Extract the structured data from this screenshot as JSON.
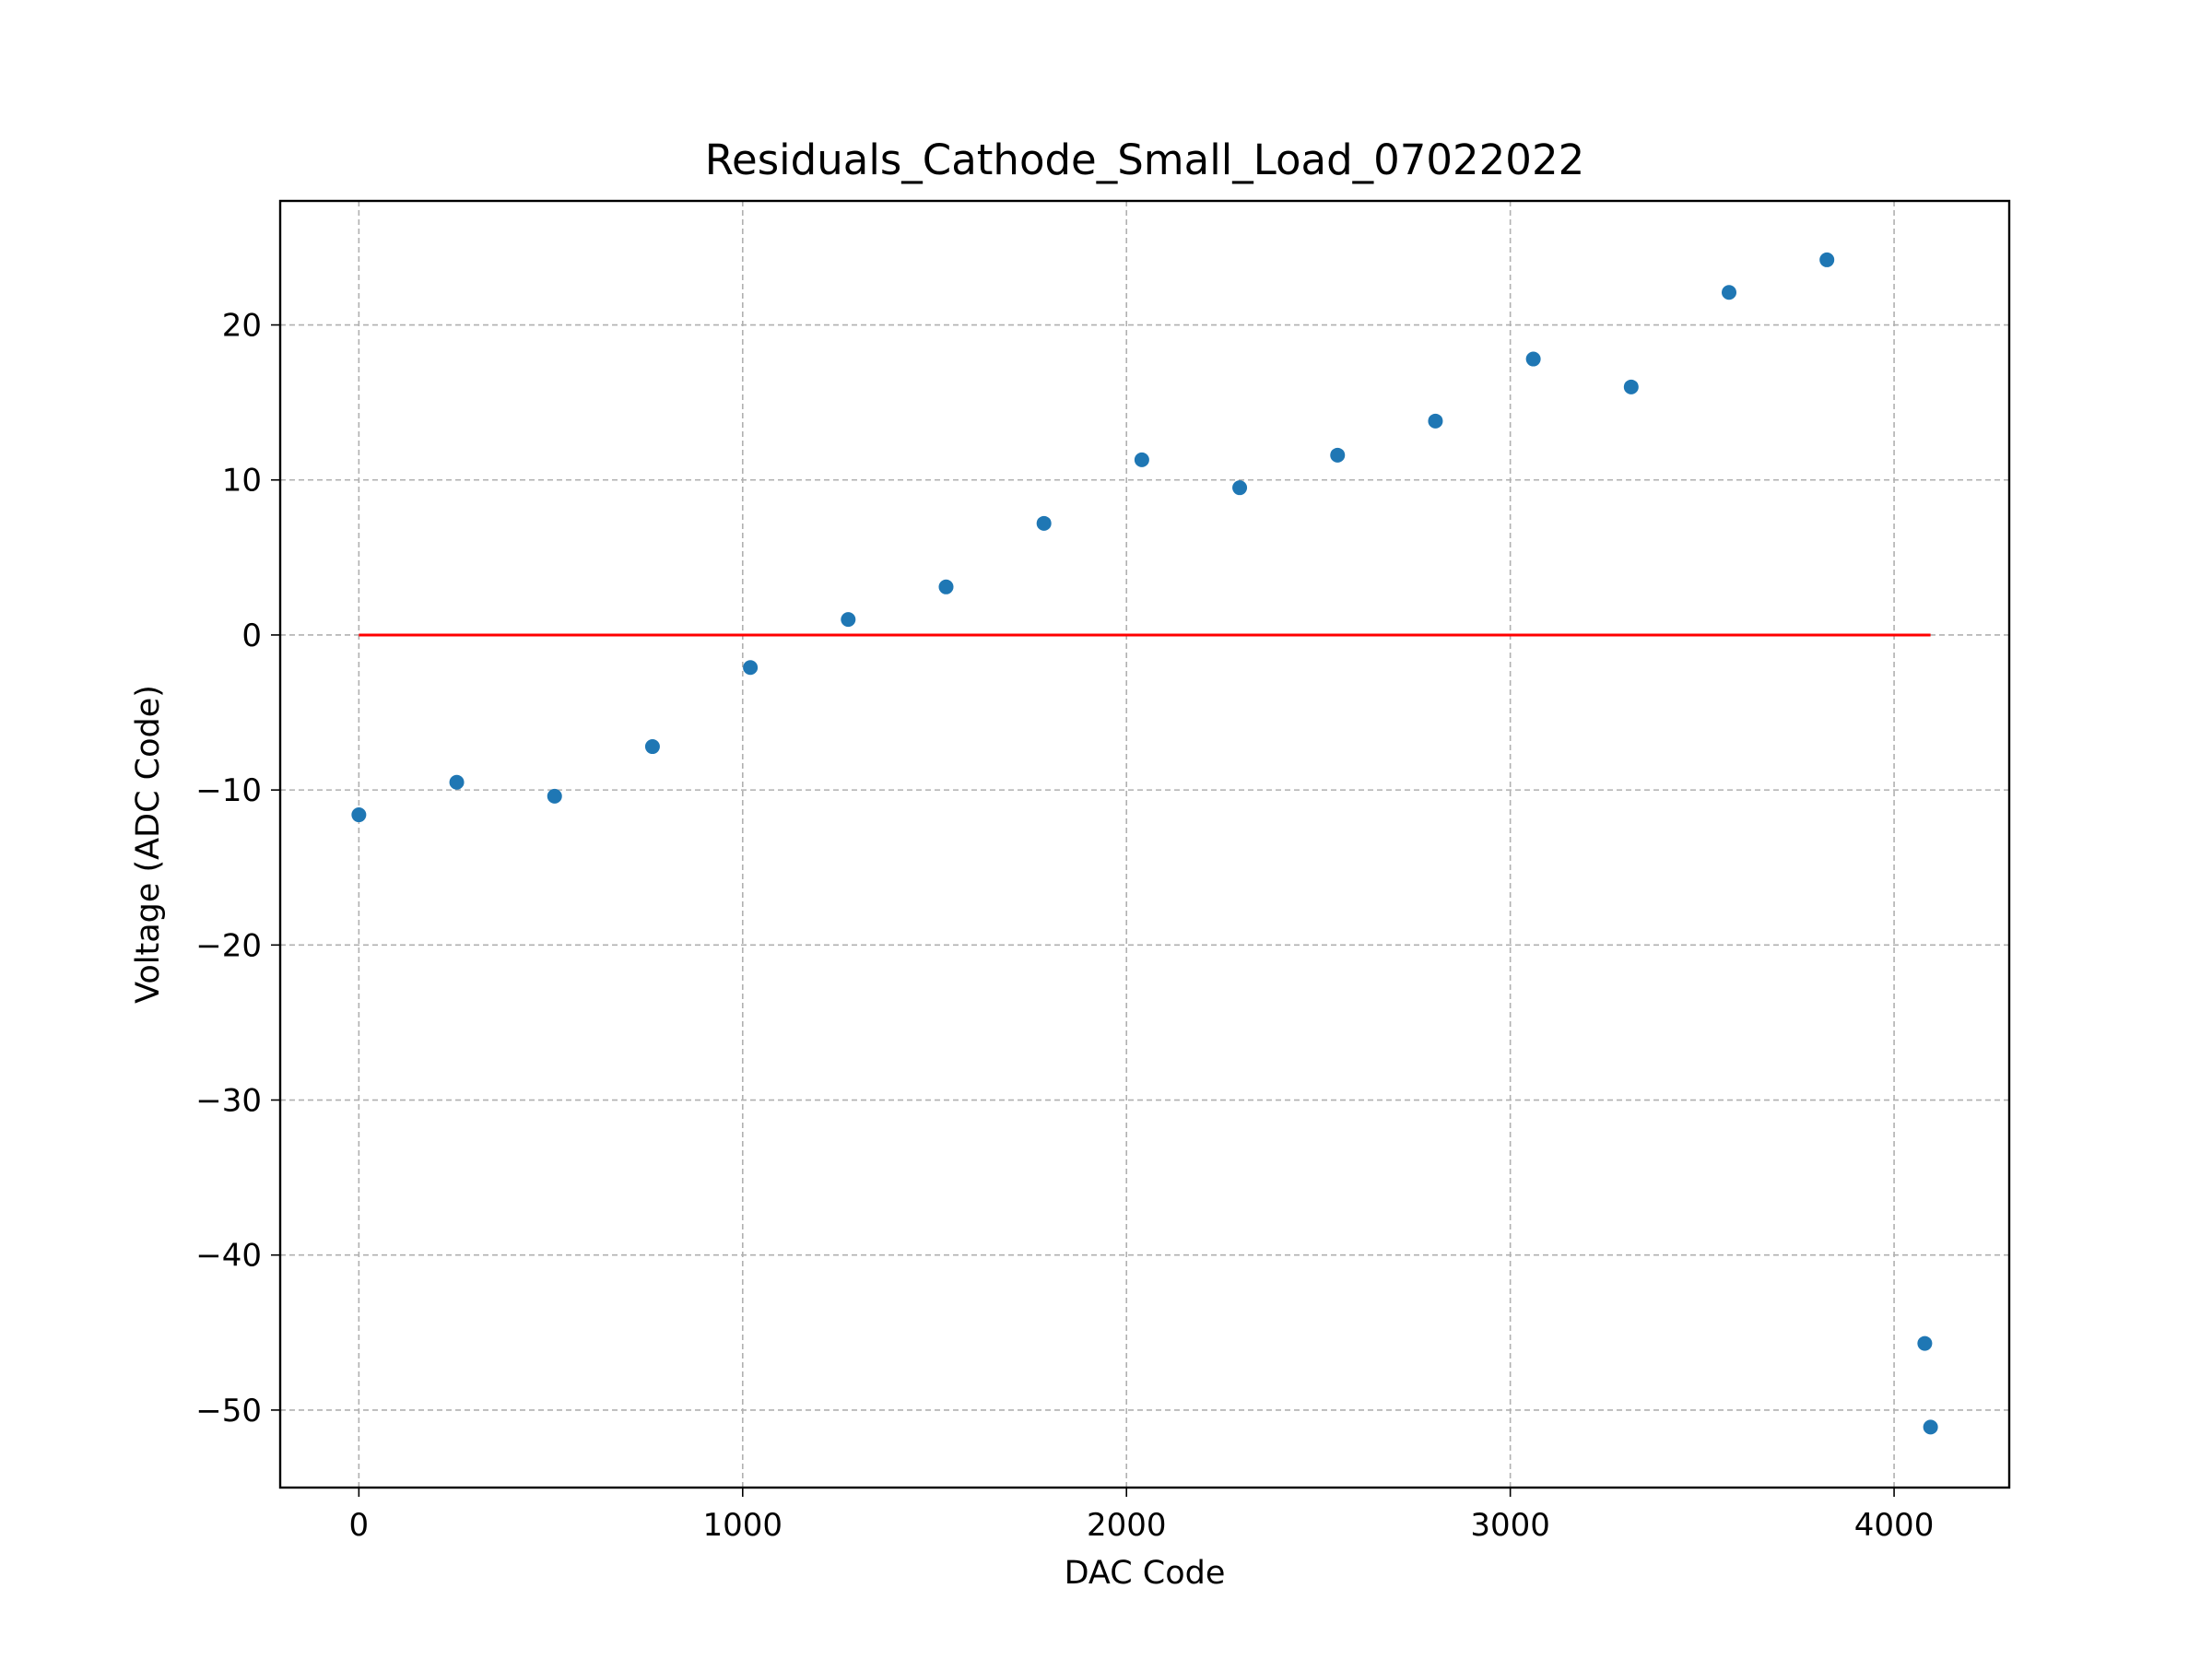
{
  "chart_data": {
    "type": "scatter",
    "title": "Residuals_Cathode_Small_Load_07022022",
    "xlabel": "DAC Code",
    "ylabel": "Voltage (ADC Code)",
    "xlim": [
      -205,
      4300
    ],
    "ylim": [
      -55,
      28
    ],
    "x_ticks": [
      0,
      1000,
      2000,
      3000,
      4000
    ],
    "x_tick_labels": [
      "0",
      "1000",
      "2000",
      "3000",
      "4000"
    ],
    "y_ticks": [
      20,
      10,
      0,
      -10,
      -20,
      -30,
      -40,
      -50
    ],
    "y_tick_labels": [
      "20",
      "10",
      "0",
      "−10",
      "−20",
      "−30",
      "−40",
      "−50"
    ],
    "grid": true,
    "series": [
      {
        "type": "scatter",
        "color": "#1f77b4",
        "x": [
          0,
          255,
          510,
          765,
          1020,
          1275,
          1530,
          1785,
          2040,
          2295,
          2550,
          2805,
          3060,
          3315,
          3570,
          3825,
          4080,
          4095
        ],
        "y": [
          -11.6,
          -9.5,
          -10.4,
          -7.2,
          -2.1,
          1.0,
          3.1,
          7.2,
          11.3,
          9.5,
          11.6,
          13.8,
          17.8,
          16.0,
          22.1,
          24.2,
          -45.7,
          -51.1
        ]
      },
      {
        "type": "line",
        "color": "#ff0000",
        "x": [
          0,
          4095
        ],
        "y": [
          0,
          0
        ]
      }
    ]
  }
}
